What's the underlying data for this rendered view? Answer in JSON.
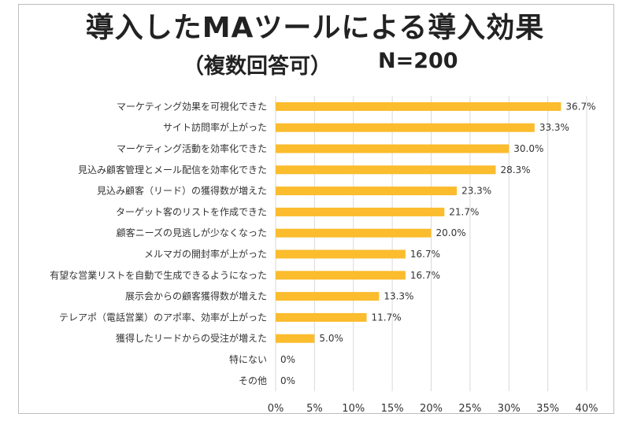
{
  "chart_data": {
    "type": "bar",
    "orientation": "horizontal",
    "title": "導入したMAツールによる導入効果",
    "subtitle": "（複数回答可）",
    "n_label": "N=200",
    "categories": [
      "マーケティング効果を可視化できた",
      "サイト訪問率が上がった",
      "マーケティング活動を効率化できた",
      "見込み顧客管理とメール配信を効率化できた",
      "見込み顧客（リード）の獲得数が増えた",
      "ターゲット客のリストを作成できた",
      "顧客ニーズの見逃しが少なくなった",
      "メルマガの開封率が上がった",
      "有望な営業リストを自動で生成できるようになった",
      "展示会からの顧客獲得数が増えた",
      "テレアポ（電話営業）のアポ率、効率が上がった",
      "獲得したリードからの受注が増えた",
      "特にない",
      "その他"
    ],
    "values": [
      36.7,
      33.3,
      30.0,
      28.3,
      23.3,
      21.7,
      20.0,
      16.7,
      16.7,
      13.3,
      11.7,
      5.0,
      0,
      0
    ],
    "value_labels": [
      "36.7%",
      "33.3%",
      "30.0%",
      "28.3%",
      "23.3%",
      "21.7%",
      "20.0%",
      "16.7%",
      "16.7%",
      "13.3%",
      "11.7%",
      "5.0%",
      "0%",
      "0%"
    ],
    "xlim": [
      0,
      40
    ],
    "xticks": [
      "0%",
      "5%",
      "10%",
      "15%",
      "20%",
      "25%",
      "30%",
      "35%",
      "40%"
    ],
    "grid": true,
    "bar_color": "#FBBC2D",
    "grid_color": "#d9d9d9"
  }
}
